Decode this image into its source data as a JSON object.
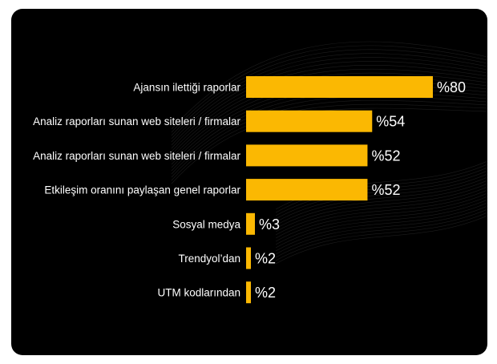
{
  "chart_data": {
    "type": "bar",
    "orientation": "horizontal",
    "categories": [
      "Ajansın ilettiği raporlar",
      "Analiz raporları sunan web siteleri / firmalar",
      "Analiz raporları sunan web siteleri / firmalar",
      "Etkileşim oranını paylaşan genel raporlar",
      "Sosyal medya",
      "Trendyol’dan",
      "UTM kodlarından"
    ],
    "values": [
      80,
      54,
      52,
      52,
      3,
      2,
      2
    ],
    "value_labels": [
      "%80",
      "%54",
      "%52",
      "%52",
      "%3",
      "%2",
      "%2"
    ],
    "xlim": [
      0,
      100
    ],
    "grid": false,
    "legend": "none"
  },
  "colors": {
    "background": "#000000",
    "page": "#ffffff",
    "bar": "#FBB802",
    "text": "#ffffff",
    "wave": "#3a3a3a"
  }
}
